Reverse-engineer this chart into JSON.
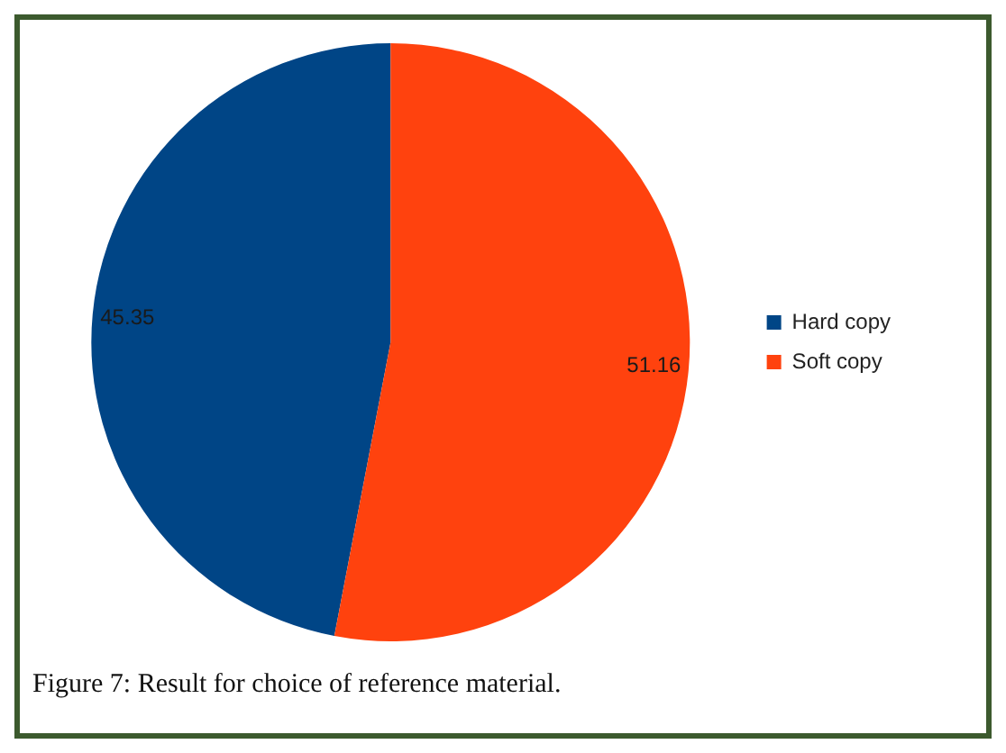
{
  "chart_data": {
    "type": "pie",
    "categories": [
      "Hard copy",
      "Soft copy"
    ],
    "values": [
      45.35,
      51.16
    ],
    "colors": [
      "#004586",
      "#ff420e"
    ],
    "data_labels": true,
    "legend": "right",
    "annotations": [
      "Figure 7: Result for choice of reference material."
    ]
  }
}
